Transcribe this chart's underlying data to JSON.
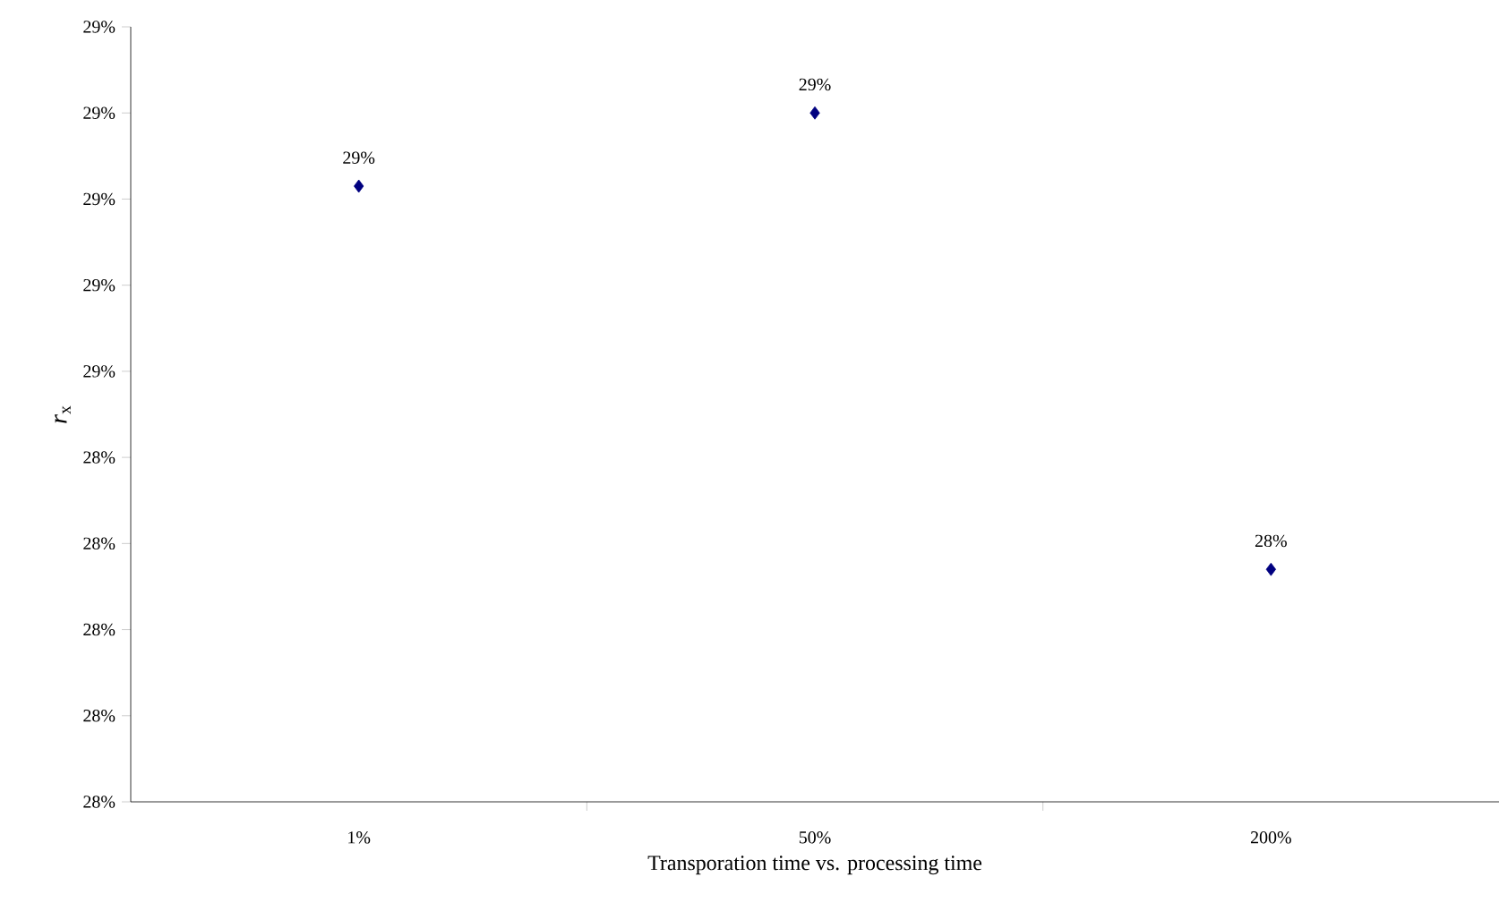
{
  "chart_data": {
    "type": "scatter",
    "xlabel": "Transporation time vs. processing time",
    "ylabel": "*r*$_{x}$",
    "categories": [
      "1%",
      "50%",
      "200%"
    ],
    "series": [
      {
        "color": "#000080",
        "values": [
          28.715,
          28.8,
          28.27
        ],
        "value_labels": [
          "29%",
          "29%",
          "28%"
        ]
      }
    ],
    "ylim": [
      28.0,
      28.9
    ],
    "yticks": [
      {
        "value": 28.0,
        "label": "28%"
      },
      {
        "value": 28.1,
        "label": "28%"
      },
      {
        "value": 28.2,
        "label": "28%"
      },
      {
        "value": 28.3,
        "label": "28%"
      },
      {
        "value": 28.4,
        "label": "28%"
      },
      {
        "value": 28.5,
        "label": "29%"
      },
      {
        "value": 28.6,
        "label": "29%"
      },
      {
        "value": 28.7,
        "label": "29%"
      },
      {
        "value": 28.8,
        "label": "29%"
      },
      {
        "value": 28.9,
        "label": "29%"
      }
    ],
    "marker": "diamond",
    "grid": false
  }
}
